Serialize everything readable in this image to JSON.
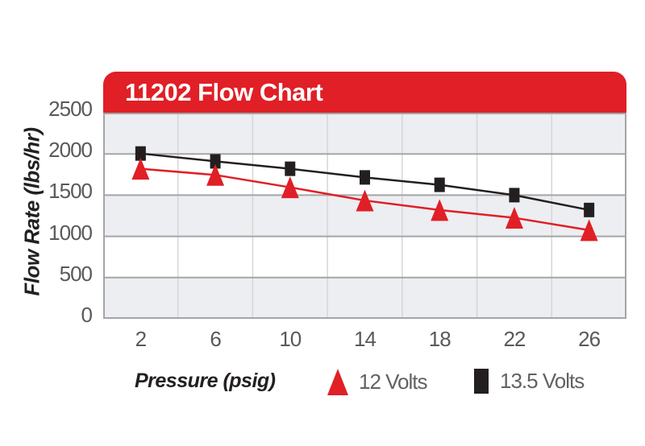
{
  "chart_data": {
    "type": "line",
    "title": "11202 Flow Chart",
    "xlabel": "Pressure (psig)",
    "ylabel": "Flow Rate (lbs/hr)",
    "x": [
      2,
      6,
      10,
      14,
      18,
      22,
      26
    ],
    "y_ticks": [
      0,
      500,
      1000,
      1500,
      2000,
      2500
    ],
    "ylim": [
      0,
      2500
    ],
    "grid": "horizontal-major + vertical-column-boundaries",
    "band_fill": "alternating gray/white horizontal bands per 500 units",
    "legend_position": "bottom",
    "series": [
      {
        "name": "12 Volts",
        "marker": "triangle",
        "color": "#e01f26",
        "values": [
          1820,
          1745,
          1595,
          1435,
          1320,
          1225,
          1075
        ]
      },
      {
        "name": "13.5 Volts",
        "marker": "square",
        "color": "#231f20",
        "values": [
          2005,
          1910,
          1820,
          1715,
          1625,
          1500,
          1320
        ]
      }
    ]
  },
  "colors": {
    "header_bg": "#e01f26",
    "band_gray": "#edeef1",
    "band_white": "#ffffff",
    "grid_horizontal": "#a4a5a7",
    "grid_vertical": "#d5d6d8",
    "plot_border": "#a4a5a7",
    "tick_text": "#58595b",
    "axis_title_text": "#242021",
    "legend_text": "#616265",
    "title_text": "#ffffff"
  }
}
